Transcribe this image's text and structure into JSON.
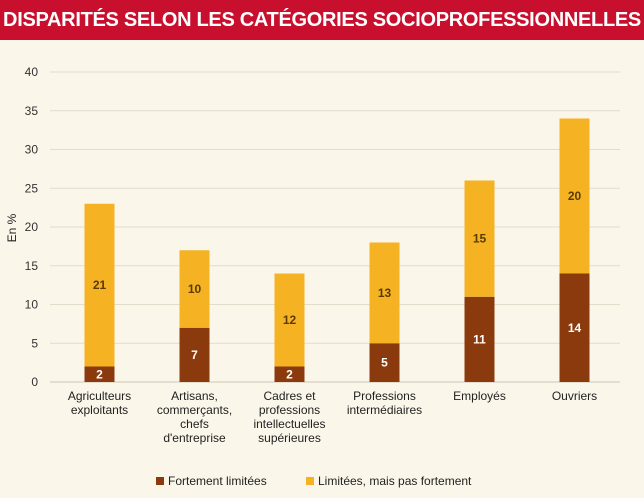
{
  "header": {
    "title": "DISPARITÉS SELON LES CATÉGORIES SOCIOPROFESSIONNELLES"
  },
  "colors": {
    "banner": "#c8102e",
    "fortement": "#8b3a0e",
    "limitees": "#f5b324",
    "background": "#fbf6ea"
  },
  "chart_data": {
    "type": "bar",
    "stacked": true,
    "ylabel": "En %",
    "xlabel": "",
    "ylim": [
      0,
      40
    ],
    "yticks": [
      0,
      5,
      10,
      15,
      20,
      25,
      30,
      35,
      40
    ],
    "grid": true,
    "legend_position": "bottom",
    "categories": [
      [
        "Agriculteurs",
        "exploitants"
      ],
      [
        "Artisans,",
        "commerçants,",
        "chefs",
        "d'entreprise"
      ],
      [
        "Cadres et",
        "professions",
        "intellectuelles",
        "supérieures"
      ],
      [
        "Professions",
        "intermédiaires"
      ],
      [
        "Employés"
      ],
      [
        "Ouvriers"
      ]
    ],
    "series": [
      {
        "name": "Fortement limitées",
        "color": "#8b3a0e",
        "label_color": "#ffffff",
        "values": [
          2,
          7,
          2,
          5,
          11,
          14
        ]
      },
      {
        "name": "Limitées, mais pas fortement",
        "color": "#f5b324",
        "label_color": "#5a3a00",
        "values": [
          21,
          10,
          12,
          13,
          15,
          20
        ]
      }
    ]
  }
}
